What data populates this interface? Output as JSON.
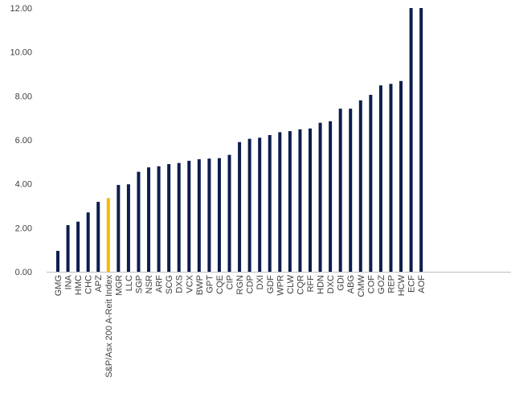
{
  "chart_data": {
    "type": "bar",
    "categories": [
      "GMG",
      "INA",
      "HMC",
      "CHC",
      "APZ",
      "S&P/Asx 200 A-Reit Index",
      "MGR",
      "LLC",
      "SGP",
      "NSR",
      "ARF",
      "SCG",
      "DXS",
      "VCX",
      "BWP",
      "GPT",
      "CQE",
      "CIP",
      "RGN",
      "CDP",
      "DXI",
      "GDF",
      "WPR",
      "CLW",
      "CQR",
      "RFF",
      "HDN",
      "DXC",
      "GDI",
      "ABG",
      "CMW",
      "COF",
      "GOZ",
      "REP",
      "HCW",
      "ECF",
      "AOF"
    ],
    "values": [
      0.95,
      2.12,
      2.28,
      2.7,
      3.18,
      3.35,
      3.95,
      3.98,
      4.55,
      4.75,
      4.8,
      4.9,
      4.95,
      5.05,
      5.12,
      5.15,
      5.17,
      5.32,
      5.9,
      6.05,
      6.1,
      6.22,
      6.35,
      6.4,
      6.48,
      6.52,
      6.78,
      6.85,
      7.42,
      7.42,
      7.8,
      8.05,
      8.48,
      8.55,
      8.68,
      12.1,
      12.1
    ],
    "highlight_index": 5,
    "colors": {
      "bar": "#0d1e4e",
      "highlight": "#f5b800",
      "axis": "#bfbfbf",
      "text": "#404040"
    },
    "y_ticks": [
      "0.00",
      "2.00",
      "4.00",
      "6.00",
      "8.00",
      "10.00",
      "12.00"
    ],
    "ylim": [
      0,
      12
    ],
    "grid": false,
    "legend": "none",
    "title": "",
    "xlabel": "",
    "ylabel": ""
  }
}
